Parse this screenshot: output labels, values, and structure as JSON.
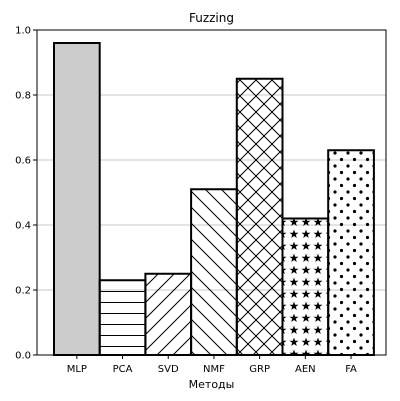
{
  "chart_data": {
    "type": "bar",
    "title": "Fuzzing",
    "xlabel": "Методы",
    "ylabel": "",
    "categories": [
      "MLP",
      "PCA",
      "SVD",
      "NMF",
      "GRP",
      "AEN",
      "FA"
    ],
    "values": [
      0.96,
      0.23,
      0.25,
      0.51,
      0.85,
      0.42,
      0.63
    ],
    "patterns": [
      "solid",
      "horizontal",
      "diagonal",
      "backdiagonal",
      "crosshatch",
      "stars",
      "dots"
    ],
    "ylim": [
      0.0,
      1.0
    ],
    "yticks": [
      "0.0",
      "0.2",
      "0.4",
      "0.6",
      "0.8",
      "1.0"
    ],
    "grid": "horizontal",
    "colors": {
      "bar_fill_solid": "#cccccc",
      "bar_edge": "#000000",
      "grid": "#c8c8c8"
    }
  }
}
